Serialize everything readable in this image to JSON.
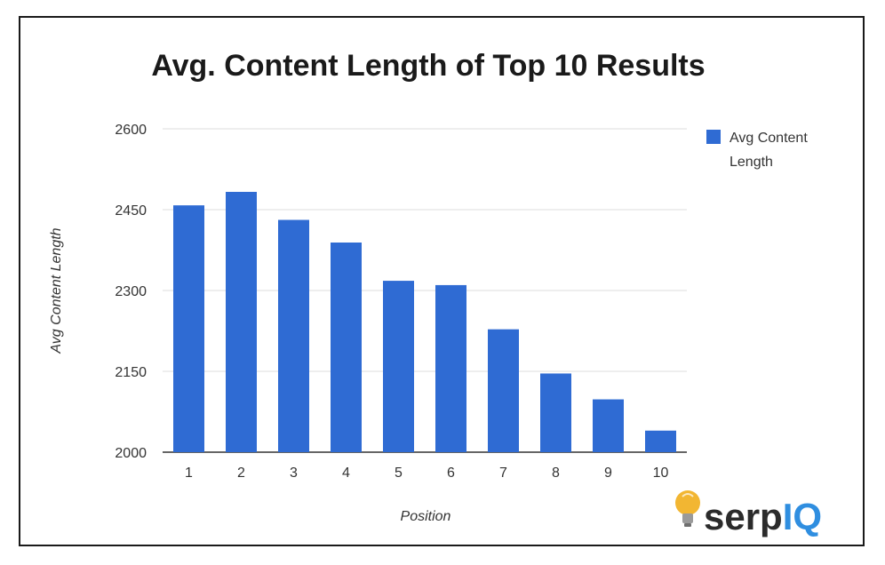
{
  "chart_data": {
    "type": "bar",
    "title": "Avg. Content Length of Top 10 Results",
    "xlabel": "Position",
    "ylabel": "Avg Content Length",
    "categories": [
      "1",
      "2",
      "3",
      "4",
      "5",
      "6",
      "7",
      "8",
      "9",
      "10"
    ],
    "series": [
      {
        "name": "Avg Content Length",
        "values": [
          2458,
          2483,
          2431,
          2389,
          2318,
          2310,
          2228,
          2146,
          2098,
          2040
        ]
      }
    ],
    "ylim": [
      2000,
      2600
    ],
    "yticks": [
      "2000",
      "2150",
      "2300",
      "2450",
      "2600"
    ],
    "grid": true,
    "legend": "right",
    "bar_color": "#2f6bd3",
    "legend_label_lines": [
      "Avg Content",
      "Length"
    ]
  },
  "logo": {
    "text": "serpIQ",
    "serp": "serp",
    "iq": "IQ",
    "iq_color": "#2f8ee0",
    "bulb_color": "#f2b632",
    "icon": "lightbulb-icon"
  }
}
